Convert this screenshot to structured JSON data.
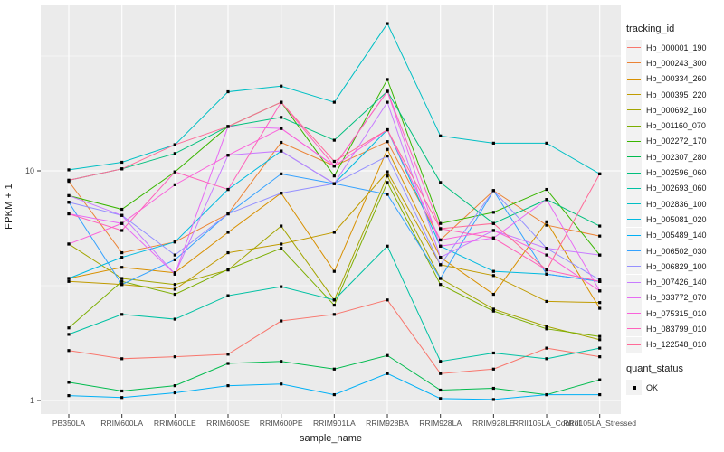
{
  "chart_data": {
    "type": "line",
    "title": "",
    "xlabel": "sample_name",
    "ylabel": "FPKM + 1",
    "y_scale": "log10",
    "ylim": [
      0.87,
      52
    ],
    "yticks": [
      {
        "label": "1",
        "value": 1
      },
      {
        "label": "10",
        "value": 10
      }
    ],
    "minor_grid_values": [
      3.162,
      31.62
    ],
    "grid": "on",
    "panel_bg": "#EBEBEB",
    "grid_color": "#FFFFFF",
    "marker": {
      "shape": "square",
      "color": "#000000"
    },
    "legend_title": "tracking_id",
    "legend_position": "right",
    "categories": [
      "PB350LA",
      "RRIM600LA",
      "RRIM600LE",
      "RRIM600SE",
      "RRIM600PE",
      "RRIM901LA",
      "RRIM928BA",
      "RRIM928LA",
      "RRIM928LE",
      "RRII105LA_Control",
      "RRII105LA_Stressed"
    ],
    "series": [
      {
        "name": "Hb_000001_190",
        "color": "#F8766D",
        "values": [
          1.65,
          1.52,
          1.55,
          1.59,
          2.22,
          2.37,
          2.74,
          1.31,
          1.37,
          1.69,
          1.55
        ]
      },
      {
        "name": "Hb_000243_300",
        "color": "#EB8335",
        "values": [
          9.0,
          4.4,
          4.9,
          6.5,
          13.3,
          10.5,
          13.4,
          5.0,
          8.2,
          5.8,
          5.2
        ]
      },
      {
        "name": "Hb_000334_260",
        "color": "#D89000",
        "values": [
          3.4,
          3.8,
          3.6,
          5.4,
          8.0,
          3.65,
          12.4,
          4.2,
          2.9,
          6.0,
          2.52
        ]
      },
      {
        "name": "Hb_000395_220",
        "color": "#C09B00",
        "values": [
          3.3,
          3.2,
          3.05,
          4.4,
          4.8,
          5.4,
          9.9,
          3.9,
          3.5,
          2.7,
          2.67
        ]
      },
      {
        "name": "Hb_000692_160",
        "color": "#A3A500",
        "values": [
          4.8,
          3.4,
          3.2,
          3.7,
          5.75,
          2.74,
          9.5,
          3.4,
          2.5,
          2.1,
          1.84
        ]
      },
      {
        "name": "Hb_001160_070",
        "color": "#7CAE00",
        "values": [
          2.07,
          3.3,
          2.9,
          3.72,
          4.6,
          2.6,
          8.9,
          3.2,
          2.45,
          2.05,
          1.9
        ]
      },
      {
        "name": "Hb_002272_170",
        "color": "#39B600",
        "values": [
          7.8,
          6.8,
          9.9,
          15.6,
          19.9,
          9.5,
          25.0,
          5.9,
          6.6,
          8.3,
          4.3
        ]
      },
      {
        "name": "Hb_002307_280",
        "color": "#00BB4E",
        "values": [
          1.2,
          1.1,
          1.16,
          1.45,
          1.48,
          1.37,
          1.57,
          1.11,
          1.13,
          1.06,
          1.23
        ]
      },
      {
        "name": "Hb_002596_060",
        "color": "#00BF7D",
        "values": [
          9.1,
          10.2,
          11.9,
          15.6,
          17.1,
          13.6,
          22.2,
          8.9,
          5.9,
          7.5,
          5.75
        ]
      },
      {
        "name": "Hb_002693_060",
        "color": "#00C1A3",
        "values": [
          1.94,
          2.37,
          2.26,
          2.86,
          3.13,
          2.74,
          4.7,
          1.48,
          1.61,
          1.52,
          1.69
        ]
      },
      {
        "name": "Hb_002836_100",
        "color": "#00BFC4",
        "values": [
          10.1,
          10.9,
          13.0,
          22.1,
          23.4,
          19.9,
          43.8,
          14.2,
          13.2,
          13.2,
          9.7
        ]
      },
      {
        "name": "Hb_005081_020",
        "color": "#00BAE0",
        "values": [
          3.4,
          4.2,
          4.9,
          8.3,
          12.2,
          8.8,
          15.1,
          4.7,
          3.65,
          3.55,
          3.3
        ]
      },
      {
        "name": "Hb_005489_140",
        "color": "#00B0F6",
        "values": [
          1.05,
          1.03,
          1.08,
          1.16,
          1.18,
          1.06,
          1.31,
          1.02,
          1.01,
          1.06,
          1.06
        ]
      },
      {
        "name": "Hb_006502_030",
        "color": "#35A2FF",
        "values": [
          7.3,
          3.2,
          4.1,
          6.5,
          9.7,
          8.8,
          7.9,
          3.4,
          8.2,
          3.55,
          3.3
        ]
      },
      {
        "name": "Hb_006829_100",
        "color": "#9590FF",
        "values": [
          7.3,
          6.4,
          4.3,
          6.5,
          8.0,
          8.8,
          11.6,
          3.9,
          8.2,
          4.6,
          3.35
        ]
      },
      {
        "name": "Hb_007426_140",
        "color": "#C77CFF",
        "values": [
          7.8,
          6.4,
          3.55,
          11.7,
          12.2,
          8.8,
          19.9,
          4.2,
          5.5,
          4.6,
          4.3
        ]
      },
      {
        "name": "Hb_033772_070",
        "color": "#E76BF3",
        "values": [
          6.5,
          5.9,
          3.55,
          15.6,
          15.3,
          10.5,
          22.2,
          4.7,
          5.1,
          7.5,
          3.0
        ]
      },
      {
        "name": "Hb_075315_010",
        "color": "#FA62DB",
        "values": [
          4.8,
          5.9,
          8.7,
          11.7,
          15.3,
          10.5,
          15.1,
          5.0,
          5.5,
          4.3,
          3.0
        ]
      },
      {
        "name": "Hb_083799_010",
        "color": "#FF62BC",
        "values": [
          6.5,
          5.5,
          9.9,
          8.3,
          19.9,
          10.5,
          22.2,
          5.6,
          5.1,
          3.7,
          3.3
        ]
      },
      {
        "name": "Hb_122548_010",
        "color": "#FF6A98",
        "values": [
          9.1,
          10.2,
          13.0,
          15.6,
          19.9,
          11.0,
          15.1,
          5.6,
          5.9,
          3.7,
          9.7
        ]
      }
    ],
    "quant_status": {
      "title": "quant_status",
      "items": [
        "OK"
      ]
    }
  }
}
